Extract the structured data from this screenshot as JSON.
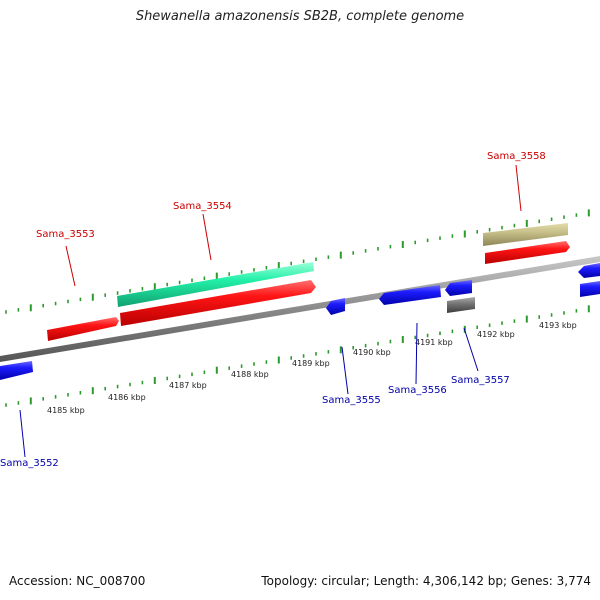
{
  "title": "Shewanella amazonensis SB2B, complete genome",
  "accession": "Accession: NC_008700",
  "summary": "Topology: circular; Length: 4,306,142 bp; Genes: 3,774",
  "colors": {
    "backbone": "#8a8a8a",
    "tick": "#2e9a2e",
    "cds_forward": "#ff1010",
    "cds_reverse": "#1c1cff",
    "rna": "#22f0a8",
    "misc_forward": "#c8c089",
    "misc_reverse": "#7a7a7a",
    "label_forward": "#cc0000",
    "label_reverse": "#0000aa"
  },
  "axis": {
    "ticks": [
      "4185 kbp",
      "4186 kbp",
      "4187 kbp",
      "4188 kbp",
      "4189 kbp",
      "4190 kbp",
      "4191 kbp",
      "4192 kbp",
      "4193 kbp"
    ]
  },
  "genes": [
    {
      "name": "Sama_3552",
      "strand": "reverse"
    },
    {
      "name": "Sama_3553",
      "strand": "forward"
    },
    {
      "name": "Sama_3554",
      "strand": "forward"
    },
    {
      "name": "Sama_3555",
      "strand": "reverse"
    },
    {
      "name": "Sama_3556",
      "strand": "reverse"
    },
    {
      "name": "Sama_3557",
      "strand": "reverse"
    },
    {
      "name": "Sama_3558",
      "strand": "forward"
    }
  ]
}
